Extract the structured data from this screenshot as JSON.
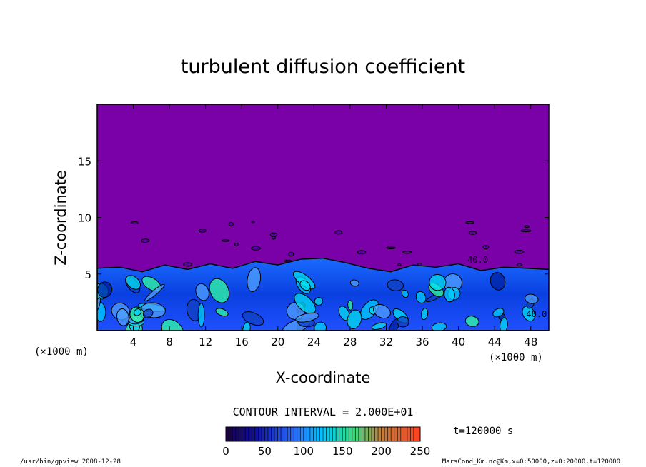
{
  "chart_data": {
    "type": "heatmap",
    "title": "turbulent diffusion coefficient",
    "xlabel": "X-coordinate",
    "ylabel": "Z-coordinate",
    "x_unit": "(×1000 m)",
    "y_unit": "(×1000 m)",
    "xlim": [
      0,
      50
    ],
    "ylim": [
      0,
      20
    ],
    "x_ticks": [
      4,
      8,
      12,
      16,
      20,
      24,
      28,
      32,
      36,
      40,
      44,
      48
    ],
    "y_ticks": [
      5,
      10,
      15
    ],
    "contour_interval": "CONTOUR INTERVAL = 2.000E+01",
    "contour_label": "40.0",
    "time_label": "t=120000 s",
    "colorbar": {
      "range": [
        0,
        250
      ],
      "ticks": [
        0,
        50,
        100,
        150,
        200,
        250
      ],
      "colors": [
        "#7a00a8",
        "#2a2aff",
        "#00b4ff",
        "#30ff80",
        "#ff4020"
      ]
    },
    "background_value_color": "#7a00a8",
    "boundary_layer_top_km": [
      5.5,
      5.6,
      5.2,
      5.8,
      5.4,
      5.9,
      5.5,
      6.1,
      5.8,
      6.3,
      6.4,
      6.0,
      5.5,
      5.2,
      5.8,
      5.6,
      5.9,
      5.3,
      5.6,
      5.5,
      5.4
    ]
  },
  "footer": {
    "left": "/usr/bin/gpview   2008-12-28",
    "right": "MarsCond_Km.nc@Km,x=0:50000,z=0:20000,t=120000"
  }
}
